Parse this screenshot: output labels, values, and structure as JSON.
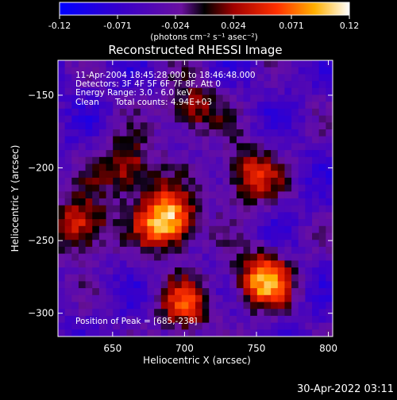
{
  "colorbar": {
    "ticks": [
      "-0.12",
      "-0.071",
      "-0.024",
      "0.024",
      "0.071",
      "0.12"
    ],
    "unit_label": "(photons cm⁻² s⁻¹ asec⁻²)"
  },
  "chart_data": {
    "type": "heatmap",
    "title": "Reconstructed RHESSI Image",
    "xlabel": "Heliocentric X (arcsec)",
    "ylabel": "Heliocentric Y (arcsec)",
    "xlim": [
      612,
      803
    ],
    "ylim": [
      -316,
      -126
    ],
    "x_ticks": [
      650,
      700,
      750,
      800
    ],
    "y_ticks": [
      -150,
      -200,
      -250,
      -300
    ],
    "x_tick_labels": [
      "650",
      "700",
      "750",
      "800"
    ],
    "y_tick_labels": [
      "−150",
      "−200",
      "−250",
      "−300"
    ],
    "color_range": [
      -0.12,
      0.12
    ],
    "sources": [
      {
        "x": 688,
        "y": -236,
        "value": 0.12
      },
      {
        "x": 755,
        "y": -277,
        "value": 0.085
      },
      {
        "x": 628,
        "y": -240,
        "value": 0.06
      },
      {
        "x": 660,
        "y": -200,
        "value": 0.045
      },
      {
        "x": 745,
        "y": -205,
        "value": 0.05
      },
      {
        "x": 705,
        "y": -160,
        "value": 0.03
      },
      {
        "x": 700,
        "y": -295,
        "value": 0.04
      }
    ]
  },
  "overlay": {
    "time_range": "11-Apr-2004 18:45:28.000 to 18:46:48.000",
    "detectors": "Detectors: 3F 4F 5F 6F 7F 8F, Att 0",
    "energy": "Energy Range: 3.0 - 6.0 keV",
    "algorithm": "Clean",
    "counts": "Total counts: 4.94E+03",
    "peak": "Position of Peak = [685,-238]"
  },
  "footer": {
    "timestamp": "30-Apr-2022 03:11"
  }
}
